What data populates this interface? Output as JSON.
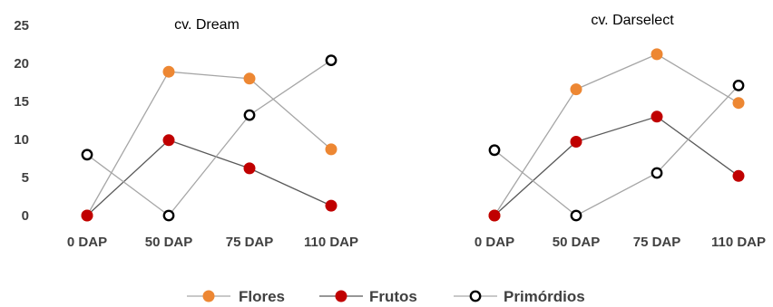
{
  "chart_data": [
    {
      "type": "line",
      "title": "cv. Dream",
      "categories": [
        "0 DAP",
        "50 DAP",
        "75 DAP",
        "110 DAP"
      ],
      "ylim": [
        0,
        25
      ],
      "yticks": [
        0,
        5,
        10,
        15,
        20,
        25
      ],
      "grid": false,
      "series": [
        {
          "name": "Flores",
          "values": [
            0,
            18.9,
            18.0,
            8.7
          ]
        },
        {
          "name": "Frutos",
          "values": [
            0,
            9.9,
            6.2,
            1.3
          ]
        },
        {
          "name": "Primórdios",
          "values": [
            8.0,
            0,
            13.2,
            20.4
          ]
        }
      ]
    },
    {
      "type": "line",
      "title": "cv. Darselect",
      "categories": [
        "0 DAP",
        "50 DAP",
        "75 DAP",
        "110 DAP"
      ],
      "ylim": [
        0,
        25
      ],
      "grid": false,
      "series": [
        {
          "name": "Flores",
          "values": [
            0,
            16.6,
            21.2,
            14.8
          ]
        },
        {
          "name": "Frutos",
          "values": [
            0,
            9.7,
            13.0,
            5.2
          ]
        },
        {
          "name": "Primórdios",
          "values": [
            8.6,
            0,
            5.6,
            17.1
          ]
        }
      ]
    }
  ],
  "legend": {
    "placement": "bottom",
    "items": [
      {
        "label": "Flores",
        "marker_fill": "#ED8733",
        "marker_stroke": "#ED8733",
        "line_color": "#A6A6A6"
      },
      {
        "label": "Frutos",
        "marker_fill": "#C00000",
        "marker_stroke": "#C00000",
        "line_color": "#595959"
      },
      {
        "label": "Primórdios",
        "marker_fill": "#FFFFFF",
        "marker_stroke": "#000000",
        "line_color": "#A6A6A6"
      }
    ]
  },
  "colors": {
    "flores": "#ED8733",
    "frutos": "#C00000",
    "primordios_stroke": "#000000",
    "line_light": "#A6A6A6",
    "line_dark": "#595959",
    "text": "#404040"
  }
}
